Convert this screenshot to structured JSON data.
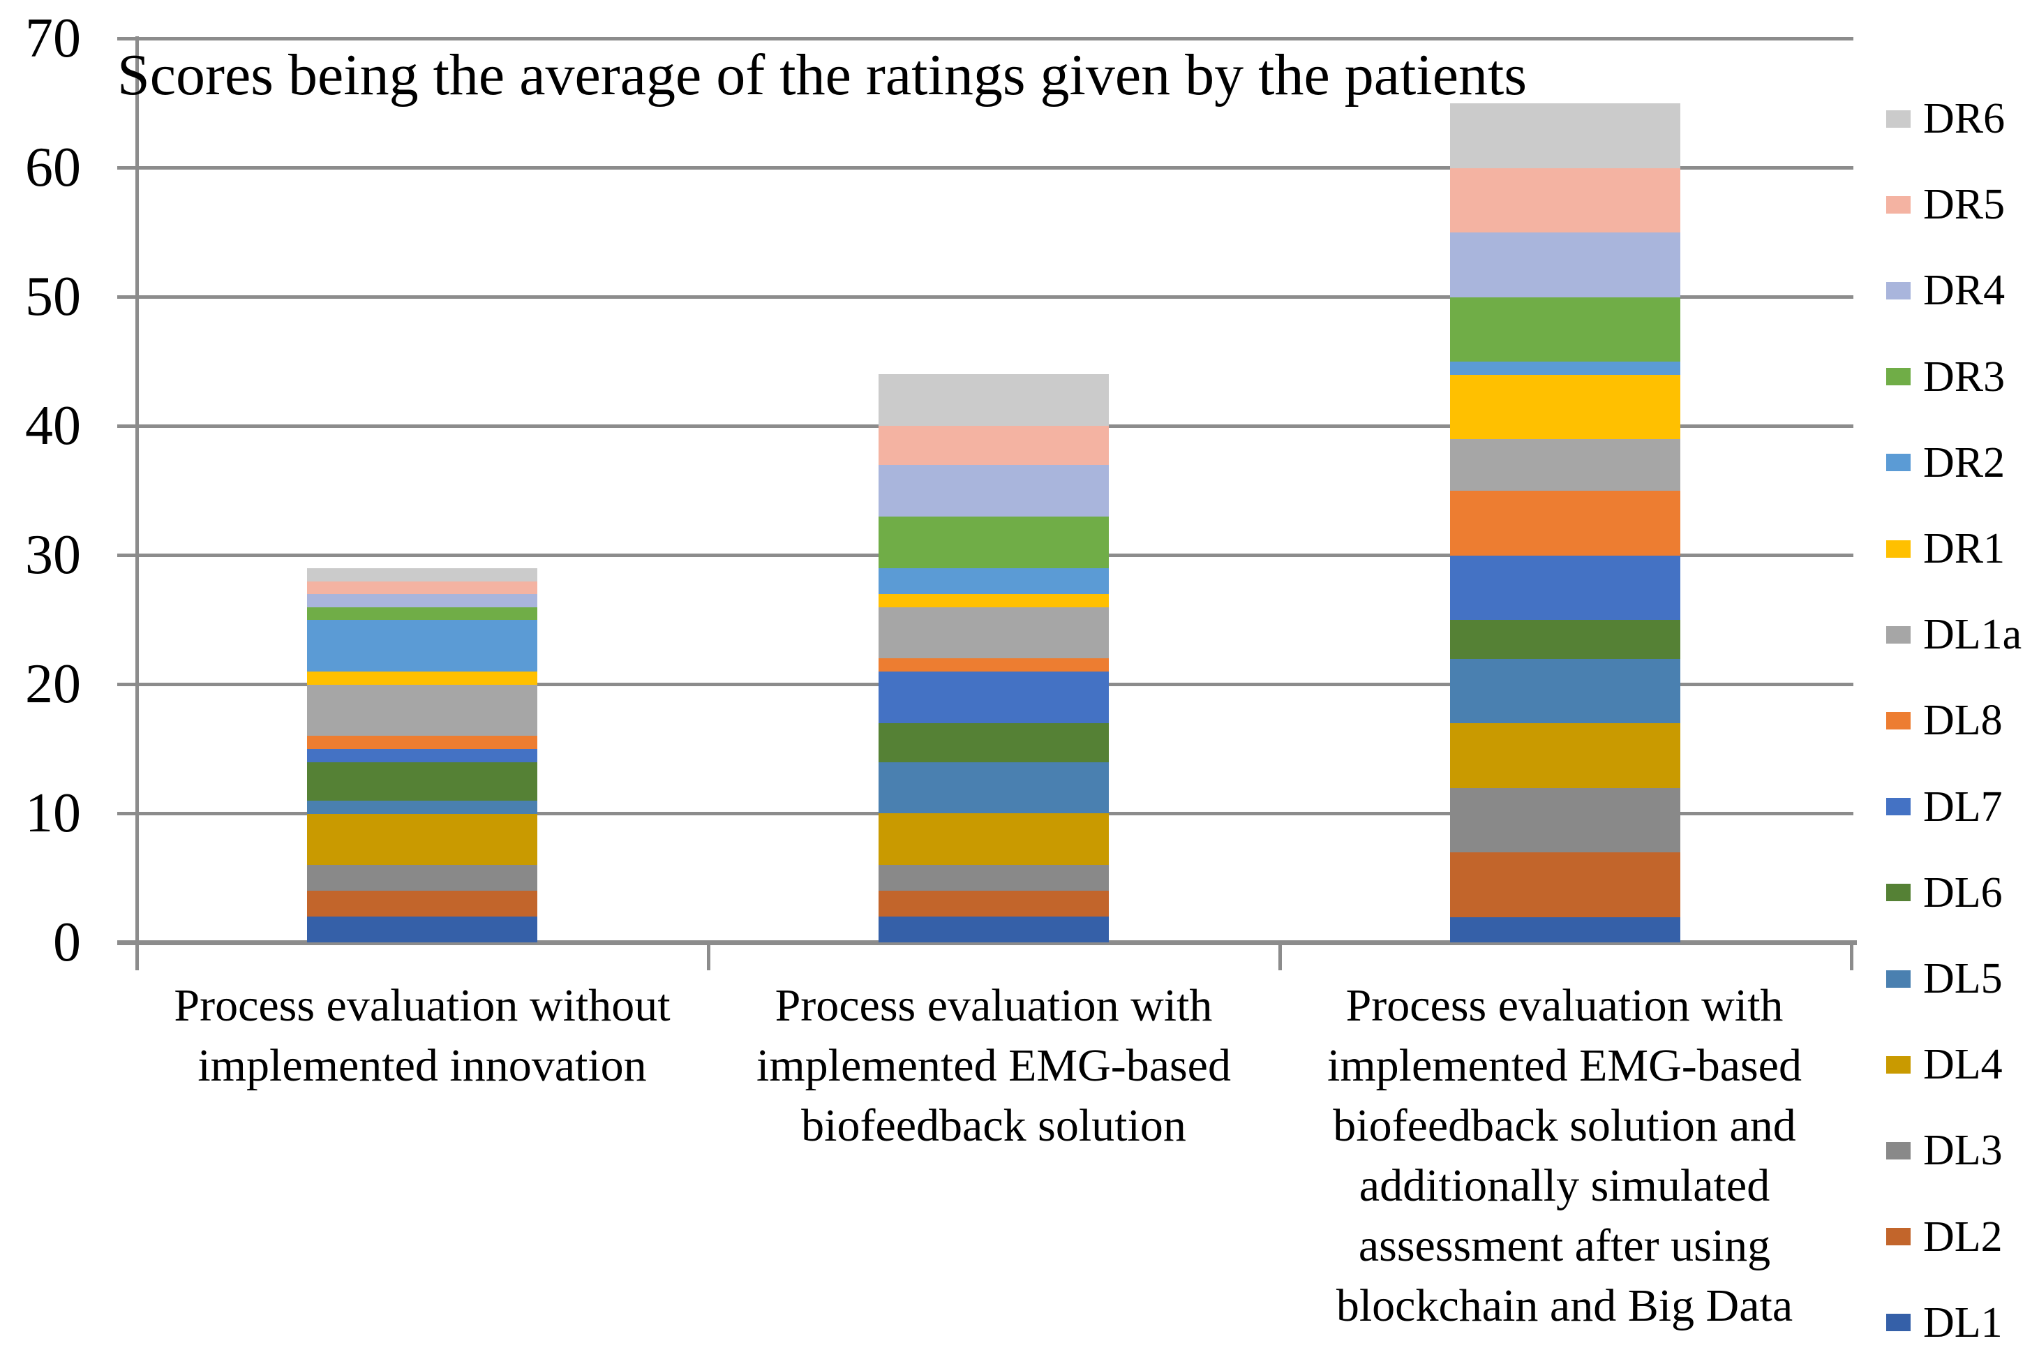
{
  "title": "Scores being the average of the ratings given by the patients",
  "colors": {
    "background": "#FFFFFF",
    "grid": "#8C8C8C",
    "axis": "#8C8C8C",
    "text": "#000000"
  },
  "chart_data": {
    "type": "bar",
    "stacked": true,
    "title": "Scores being the average of the ratings given by the patients",
    "xlabel": "",
    "ylabel": "",
    "ylim": [
      0,
      70
    ],
    "yticks": [
      "0",
      "10",
      "20",
      "30",
      "40",
      "50",
      "60",
      "70"
    ],
    "grid": true,
    "legend_position": "right",
    "categories": [
      "Process evaluation without implemented innovation",
      "Process evaluation with implemented EMG-based biofeedback solution",
      "Process evaluation with implemented EMG-based biofeedback solution and additionally simulated assessment after using blockchain and Big Data"
    ],
    "category_label_lines": [
      [
        "Process evaluation without",
        "implemented innovation"
      ],
      [
        "Process evaluation with",
        "implemented EMG-based",
        "biofeedback solution"
      ],
      [
        "Process evaluation with",
        "implemented EMG-based",
        "biofeedback solution and",
        "additionally simulated",
        "assessment after using",
        "blockchain and Big Data"
      ]
    ],
    "series_bottom_to_top": [
      {
        "name": "DL1",
        "color": "#3560A8",
        "values": [
          2,
          2,
          2
        ]
      },
      {
        "name": "DL2",
        "color": "#C2652B",
        "values": [
          2,
          2,
          5
        ]
      },
      {
        "name": "DL3",
        "color": "#898989",
        "values": [
          2,
          2,
          5
        ]
      },
      {
        "name": "DL4",
        "color": "#C99A00",
        "values": [
          4,
          4,
          5
        ]
      },
      {
        "name": "DL5",
        "color": "#4A80B0",
        "values": [
          1,
          4,
          5
        ]
      },
      {
        "name": "DL6",
        "color": "#558135",
        "values": [
          3,
          3,
          3
        ]
      },
      {
        "name": "DL7",
        "color": "#4472C4",
        "values": [
          1,
          4,
          5
        ]
      },
      {
        "name": "DL8",
        "color": "#ED7D31",
        "values": [
          1,
          1,
          5
        ]
      },
      {
        "name": "DL1a",
        "color": "#A6A6A6",
        "values": [
          4,
          4,
          4
        ]
      },
      {
        "name": "DR1",
        "color": "#FFC000",
        "values": [
          1,
          1,
          5
        ]
      },
      {
        "name": "DR2",
        "color": "#5B9BD5",
        "values": [
          4,
          2,
          1
        ]
      },
      {
        "name": "DR3",
        "color": "#70AD47",
        "values": [
          1,
          4,
          5
        ]
      },
      {
        "name": "DR4",
        "color": "#A9B5DC",
        "values": [
          1,
          4,
          5
        ]
      },
      {
        "name": "DR5",
        "color": "#F4B3A2",
        "values": [
          1,
          3,
          5
        ]
      },
      {
        "name": "DR6",
        "color": "#CBCBCB",
        "values": [
          1,
          4,
          5
        ]
      }
    ],
    "totals": [
      29,
      44,
      65
    ],
    "legend_order_top_to_bottom": [
      "DR6",
      "DR5",
      "DR4",
      "DR3",
      "DR2",
      "DR1",
      "DL1a",
      "DL8",
      "DL7",
      "DL6",
      "DL5",
      "DL4",
      "DL3",
      "DL2",
      "DL1"
    ]
  }
}
